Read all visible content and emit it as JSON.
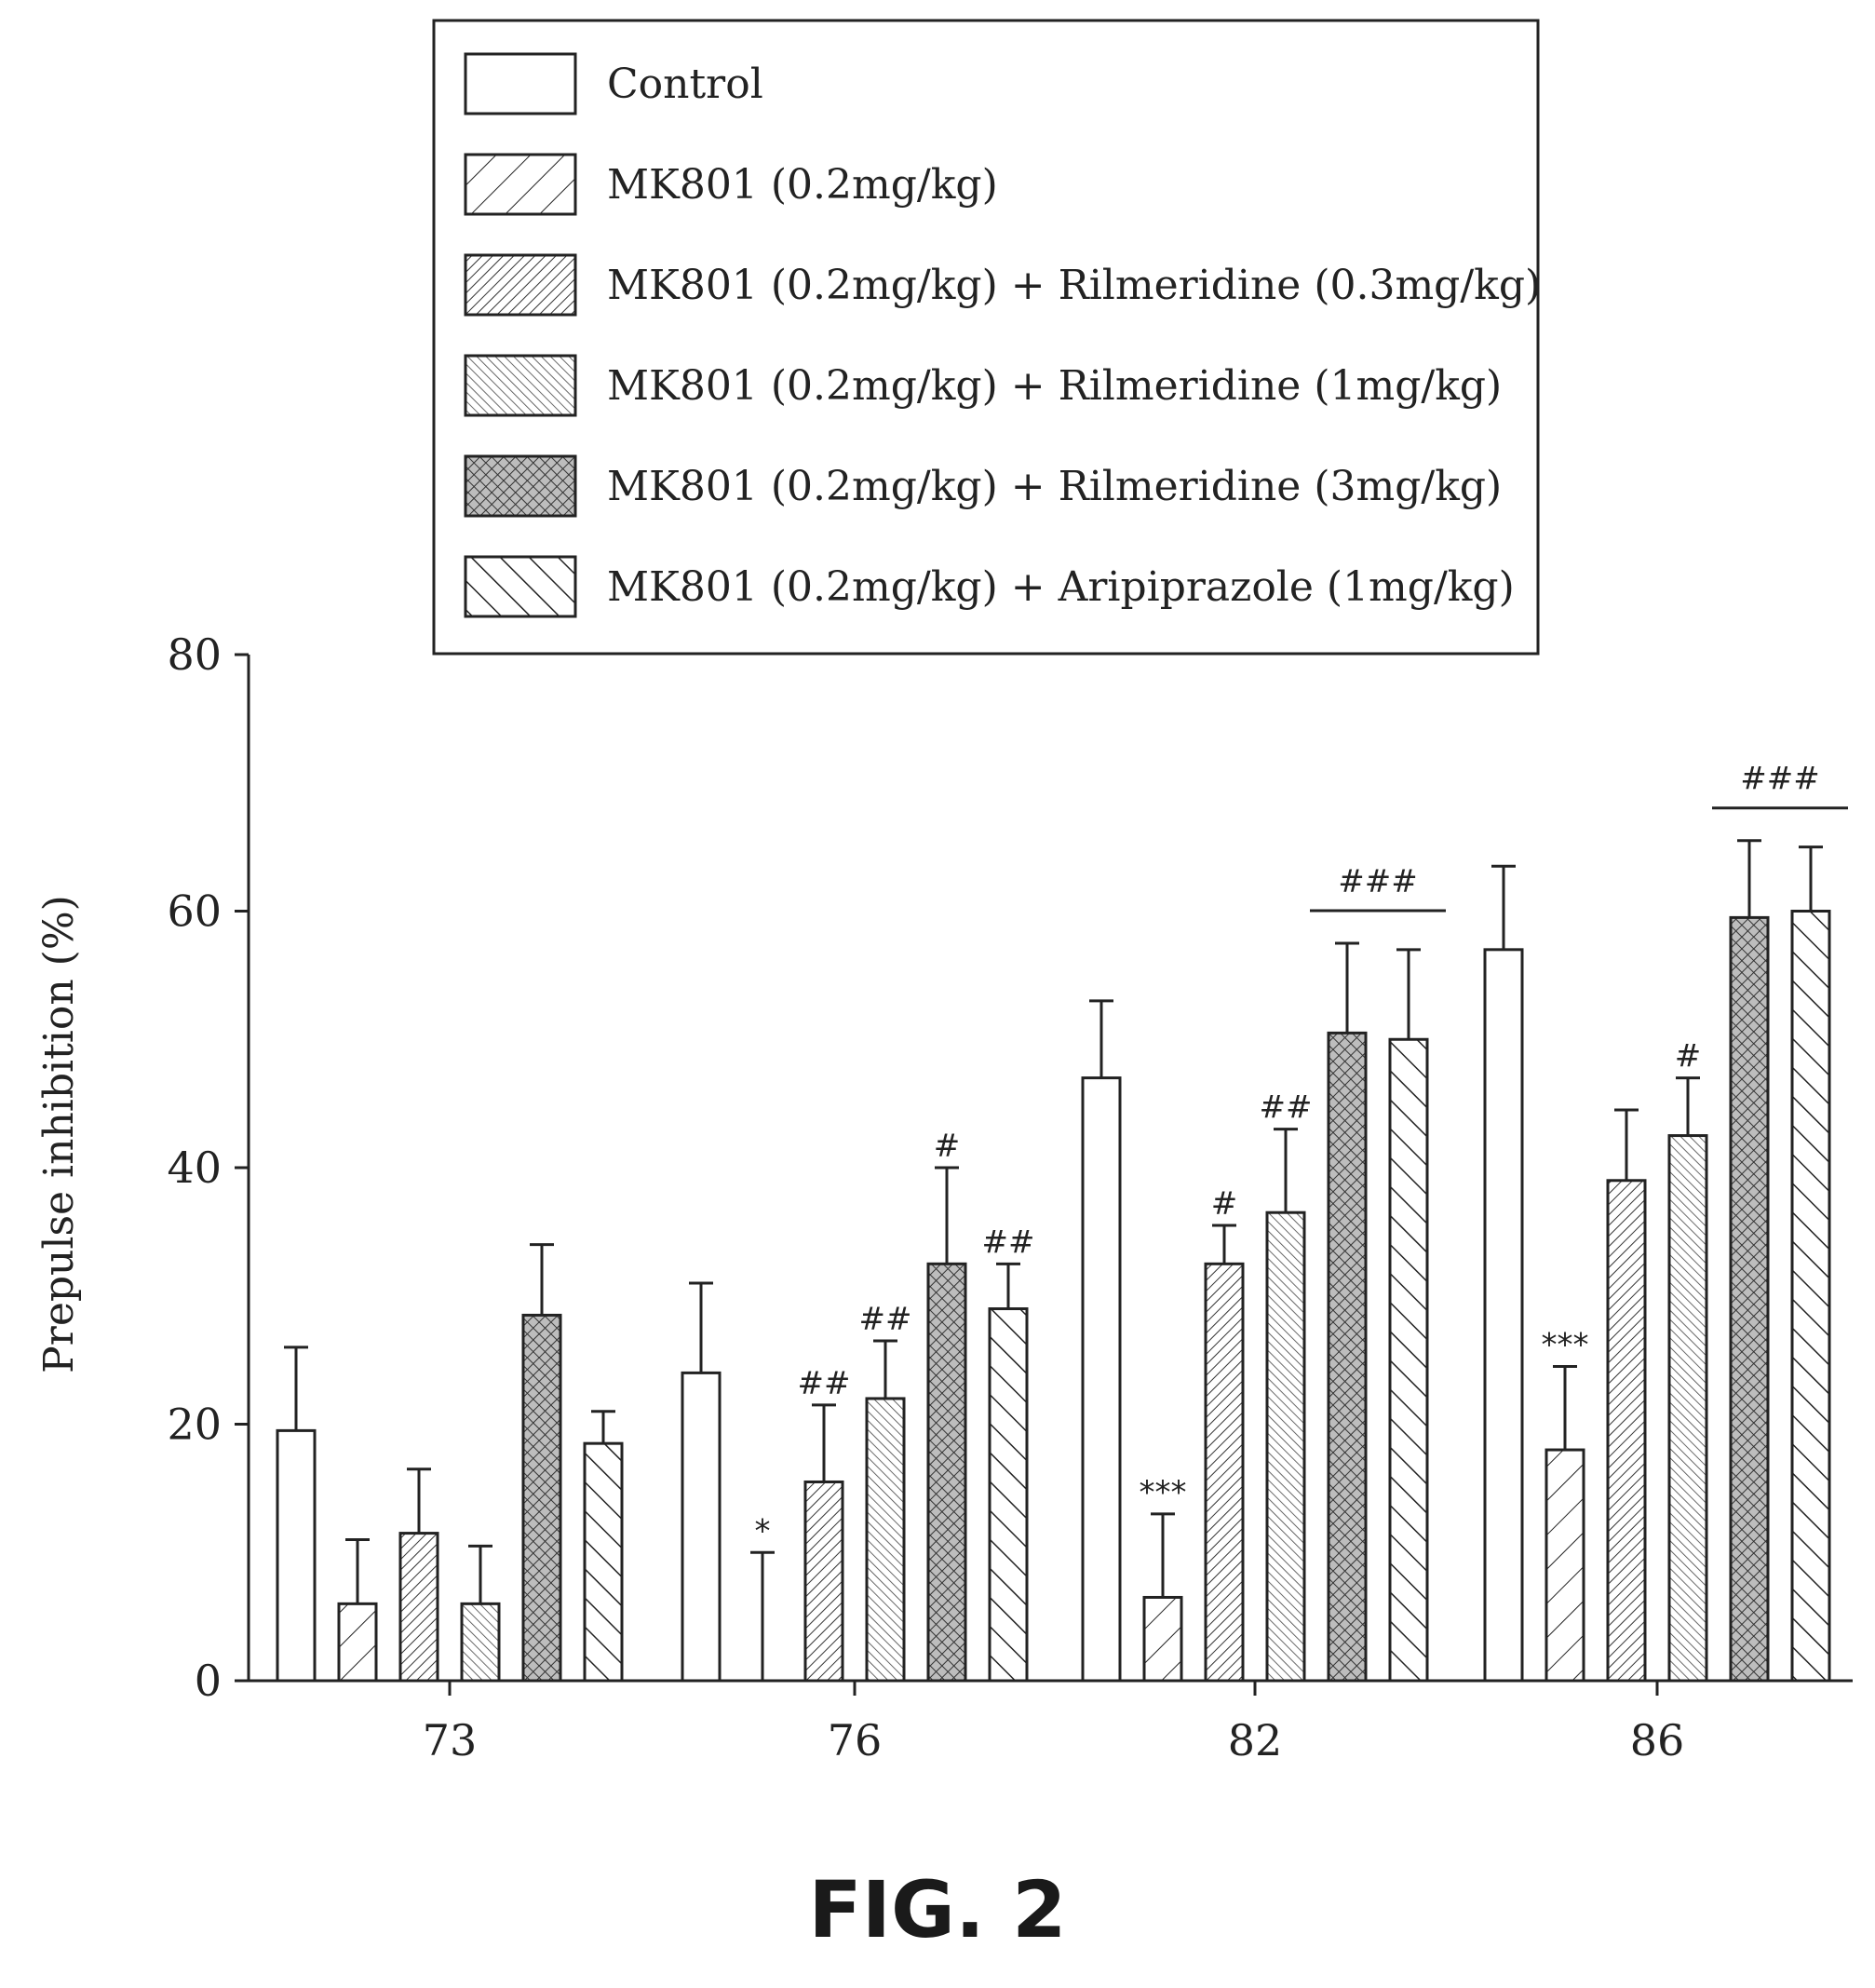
{
  "figure_label": "FIG. 2",
  "chart_data": {
    "type": "bar",
    "title": "",
    "xlabel": "",
    "ylabel": "Prepulse inhibition (%)",
    "ylim": [
      0,
      80
    ],
    "yticks": [
      0,
      20,
      40,
      60,
      80
    ],
    "categories": [
      "73",
      "76",
      "82",
      "86"
    ],
    "legend_position": "top",
    "series": [
      {
        "name": "Control",
        "pattern": "none",
        "values": [
          19.5,
          24,
          47,
          57
        ],
        "errors": [
          6.5,
          7,
          6,
          6.5
        ],
        "annotations": [
          "",
          "",
          "",
          ""
        ]
      },
      {
        "name": "MK801 (0.2mg/kg)",
        "pattern": "hatch-sparse",
        "values": [
          6,
          0,
          6.5,
          18
        ],
        "errors": [
          5,
          10,
          6.5,
          6.5
        ],
        "annotations": [
          "",
          "*",
          "***",
          "***"
        ]
      },
      {
        "name": "MK801 (0.2mg/kg) + Rilmeridine (0.3mg/kg)",
        "pattern": "hatch-dense",
        "values": [
          11.5,
          15.5,
          32.5,
          39
        ],
        "errors": [
          5,
          6,
          3,
          5.5
        ],
        "annotations": [
          "",
          "##",
          "#",
          ""
        ]
      },
      {
        "name": "MK801 (0.2mg/kg) + Rilmeridine (1mg/kg)",
        "pattern": "back-hatch",
        "values": [
          6,
          22,
          36.5,
          42.5
        ],
        "errors": [
          4.5,
          4.5,
          6.5,
          4.5
        ],
        "annotations": [
          "",
          "##",
          "##",
          "#"
        ]
      },
      {
        "name": "MK801 (0.2mg/kg) + Rilmeridine (3mg/kg)",
        "pattern": "crosshatch",
        "values": [
          28.5,
          32.5,
          50.5,
          59.5
        ],
        "errors": [
          5.5,
          7.5,
          7,
          6
        ],
        "annotations": [
          "",
          "#",
          "",
          ""
        ]
      },
      {
        "name": "MK801 (0.2mg/kg) + Aripiprazole (1mg/kg)",
        "pattern": "back-hatch-wide",
        "values": [
          18.5,
          29,
          50,
          60
        ],
        "errors": [
          2.5,
          3.5,
          7,
          5
        ],
        "annotations": [
          "",
          "##",
          "",
          ""
        ]
      }
    ],
    "group_annotations": [
      {
        "category": "82",
        "series": [
          4,
          5
        ],
        "label": "###"
      },
      {
        "category": "86",
        "series": [
          4,
          5
        ],
        "label": "###"
      }
    ]
  }
}
